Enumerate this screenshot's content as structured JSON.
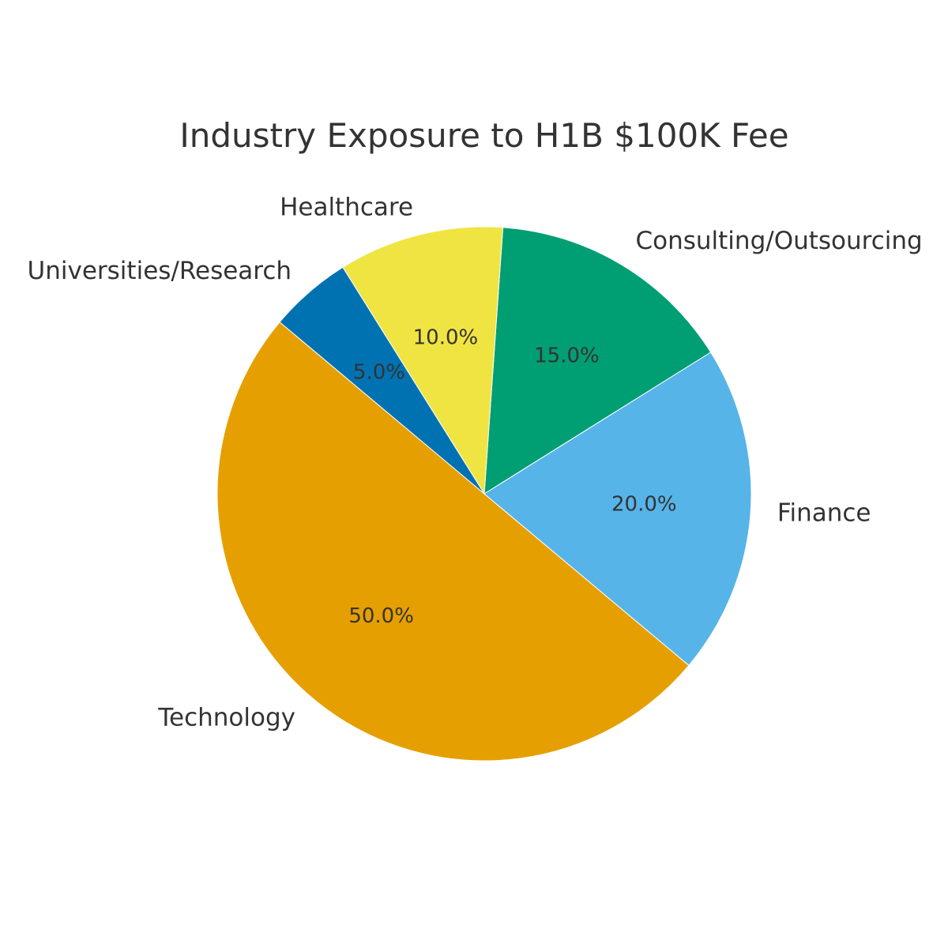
{
  "chart_data": {
    "type": "pie",
    "title": "Industry Exposure to H1B $100K Fee",
    "slices": [
      {
        "label": "Technology",
        "value": 50.0,
        "pct_label": "50.0%",
        "color": "#E69F00"
      },
      {
        "label": "Finance",
        "value": 20.0,
        "pct_label": "20.0%",
        "color": "#56B4E9"
      },
      {
        "label": "Consulting/Outsourcing",
        "value": 15.0,
        "pct_label": "15.0%",
        "color": "#009E73"
      },
      {
        "label": "Healthcare",
        "value": 10.0,
        "pct_label": "10.0%",
        "color": "#F0E442"
      },
      {
        "label": "Universities/Research",
        "value": 5.0,
        "pct_label": "5.0%",
        "color": "#0072B2"
      }
    ],
    "start_angle_deg": 140,
    "direction": "counterclockwise",
    "legend": "none",
    "grid": false
  }
}
